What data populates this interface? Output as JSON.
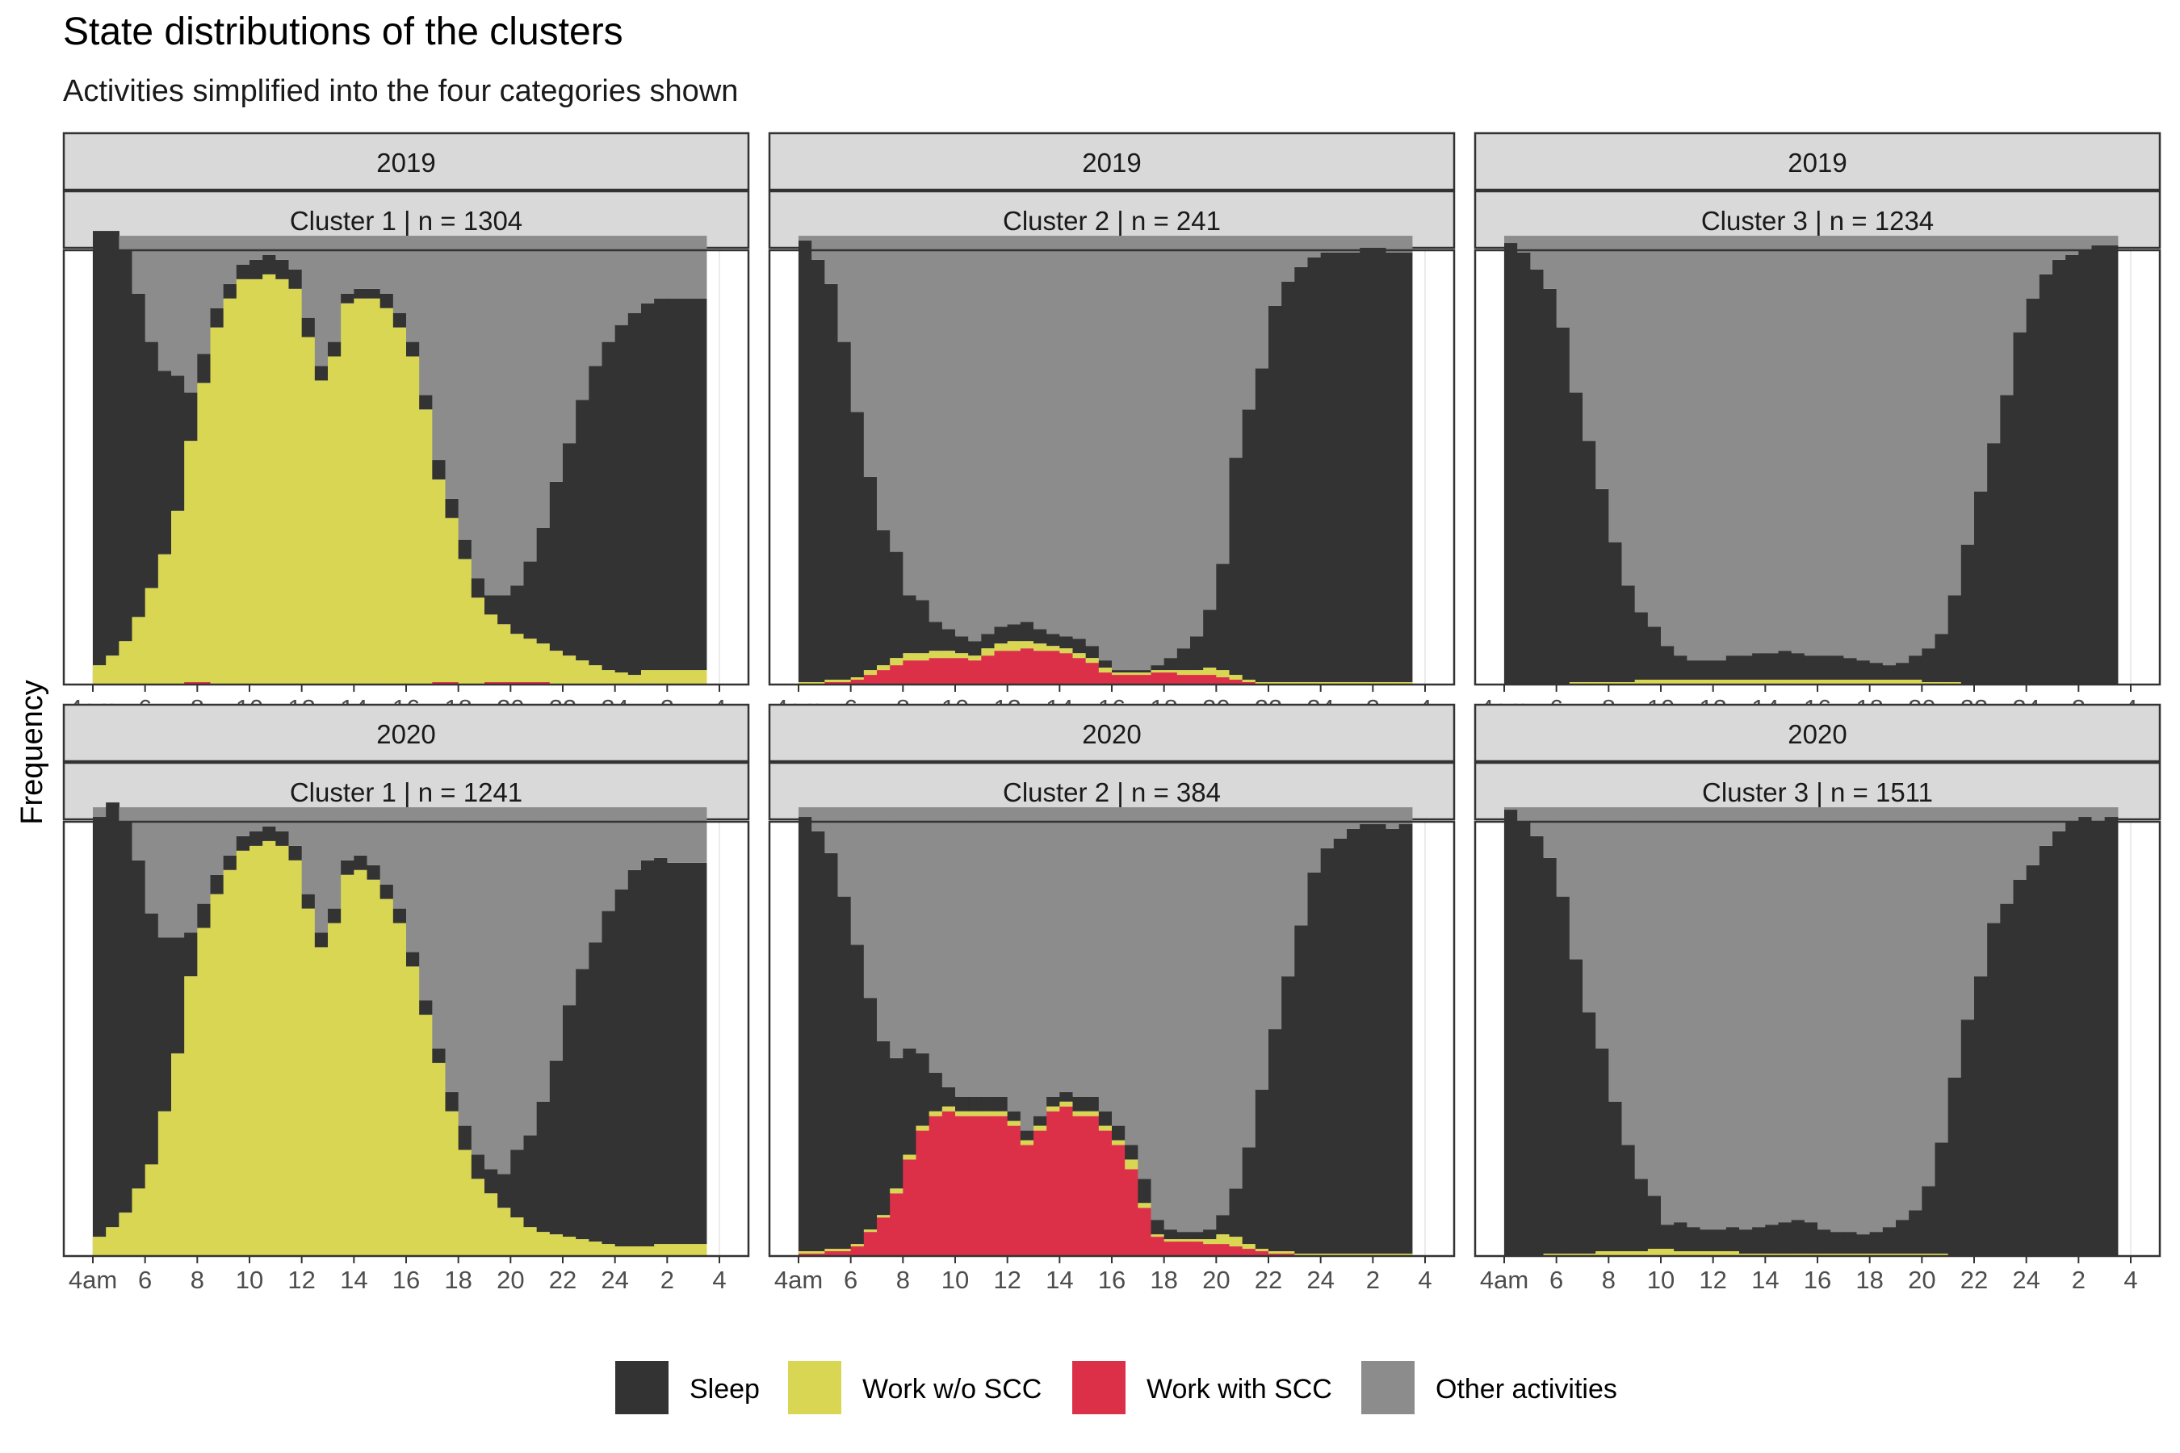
{
  "title": "State distributions of the clusters",
  "subtitle": "Activities simplified into the four categories shown",
  "colors": {
    "sleep": "#333333",
    "work_wo_scc": "#d9d653",
    "work_with_scc": "#dc3049",
    "other": "#8c8c8c",
    "strip_bg": "#d9d9d9",
    "frame": "#333333"
  },
  "chart_data": {
    "type": "stacked-bar",
    "ylabel": "Frequency",
    "xlabel": "",
    "x_ticks": [
      "4am",
      "6",
      "8",
      "10",
      "12",
      "14",
      "16",
      "18",
      "20",
      "22",
      "24",
      "2",
      "4"
    ],
    "x_tick_positions_hours": [
      4,
      6,
      8,
      10,
      12,
      14,
      16,
      18,
      20,
      22,
      24,
      26,
      28
    ],
    "xlim_hours": [
      4,
      28
    ],
    "bin_minutes": 30,
    "stack_order": [
      "Work with SCC",
      "Work w/o SCC",
      "Sleep",
      "Other activities"
    ],
    "legend": [
      {
        "label": "Sleep",
        "color_key": "sleep"
      },
      {
        "label": "Work w/o SCC",
        "color_key": "work_wo_scc"
      },
      {
        "label": "Work with SCC",
        "color_key": "work_with_scc"
      },
      {
        "label": "Other activities",
        "color_key": "other"
      }
    ],
    "legend_position": "bottom",
    "panels": [
      {
        "year": "2019",
        "cluster_label": "Cluster 1  |  n = 1304",
        "row": 0,
        "col": 0,
        "scc": [
          0.0,
          0.0,
          0.0,
          0.0,
          0.0,
          0.0,
          0.0,
          0.005,
          0.005,
          0.0,
          0.0,
          0.0,
          0.0,
          0.0,
          0.0,
          0.0,
          0.0,
          0.0,
          0.0,
          0.0,
          0.0,
          0.0,
          0.0,
          0.0,
          0.0,
          0.0,
          0.005,
          0.005,
          0.0,
          0.0,
          0.005,
          0.005,
          0.005,
          0.005,
          0.005,
          0.0,
          0.0,
          0.0,
          0.0,
          0.0,
          0.0,
          0.0,
          0.0,
          0.0,
          0.0,
          0.0,
          0.0,
          0.0
        ],
        "work": [
          0.04,
          0.06,
          0.09,
          0.14,
          0.2,
          0.27,
          0.36,
          0.5,
          0.62,
          0.74,
          0.8,
          0.84,
          0.84,
          0.85,
          0.84,
          0.82,
          0.72,
          0.63,
          0.68,
          0.79,
          0.8,
          0.8,
          0.78,
          0.74,
          0.68,
          0.57,
          0.42,
          0.34,
          0.26,
          0.18,
          0.14,
          0.12,
          0.1,
          0.09,
          0.08,
          0.07,
          0.06,
          0.05,
          0.04,
          0.03,
          0.025,
          0.02,
          0.03,
          0.03,
          0.03,
          0.03,
          0.03,
          0.0
        ],
        "sleep": [
          0.9,
          0.88,
          0.81,
          0.67,
          0.51,
          0.38,
          0.28,
          0.1,
          0.06,
          0.04,
          0.03,
          0.03,
          0.04,
          0.04,
          0.04,
          0.04,
          0.04,
          0.03,
          0.03,
          0.02,
          0.02,
          0.02,
          0.03,
          0.03,
          0.03,
          0.03,
          0.04,
          0.04,
          0.04,
          0.04,
          0.04,
          0.06,
          0.1,
          0.16,
          0.24,
          0.35,
          0.44,
          0.54,
          0.62,
          0.68,
          0.72,
          0.75,
          0.76,
          0.77,
          0.77,
          0.77,
          0.77,
          0.0
        ]
      },
      {
        "year": "2019",
        "cluster_label": "Cluster 2  |  n = 241",
        "row": 0,
        "col": 1,
        "scc": [
          0.0,
          0.0,
          0.005,
          0.005,
          0.01,
          0.02,
          0.03,
          0.04,
          0.05,
          0.05,
          0.055,
          0.055,
          0.055,
          0.05,
          0.06,
          0.07,
          0.07,
          0.075,
          0.07,
          0.07,
          0.065,
          0.055,
          0.045,
          0.025,
          0.02,
          0.02,
          0.02,
          0.025,
          0.025,
          0.02,
          0.02,
          0.02,
          0.015,
          0.01,
          0.005,
          0.0,
          0.0,
          0.0,
          0.0,
          0.0,
          0.0,
          0.0,
          0.0,
          0.0,
          0.0,
          0.0,
          0.0,
          0.0
        ],
        "work": [
          0.005,
          0.005,
          0.005,
          0.005,
          0.005,
          0.01,
          0.01,
          0.015,
          0.015,
          0.015,
          0.015,
          0.015,
          0.01,
          0.01,
          0.015,
          0.015,
          0.02,
          0.015,
          0.015,
          0.01,
          0.01,
          0.01,
          0.01,
          0.01,
          0.005,
          0.005,
          0.005,
          0.005,
          0.005,
          0.01,
          0.01,
          0.015,
          0.015,
          0.01,
          0.005,
          0.005,
          0.005,
          0.005,
          0.005,
          0.005,
          0.005,
          0.005,
          0.005,
          0.005,
          0.005,
          0.005,
          0.005,
          0.0
        ],
        "sleep": [
          0.915,
          0.875,
          0.82,
          0.7,
          0.55,
          0.4,
          0.28,
          0.22,
          0.12,
          0.11,
          0.06,
          0.045,
          0.035,
          0.03,
          0.03,
          0.035,
          0.035,
          0.04,
          0.03,
          0.025,
          0.025,
          0.03,
          0.025,
          0.015,
          0.005,
          0.005,
          0.005,
          0.01,
          0.025,
          0.045,
          0.07,
          0.12,
          0.22,
          0.45,
          0.56,
          0.65,
          0.78,
          0.83,
          0.86,
          0.88,
          0.89,
          0.89,
          0.89,
          0.9,
          0.9,
          0.89,
          0.89,
          0.0
        ]
      },
      {
        "year": "2019",
        "cluster_label": "Cluster 3  |  n = 1234",
        "row": 0,
        "col": 2,
        "scc": [
          0.0,
          0.0,
          0.0,
          0.0,
          0.0,
          0.0,
          0.0,
          0.0,
          0.0,
          0.0,
          0.0,
          0.0,
          0.0,
          0.0,
          0.0,
          0.0,
          0.0,
          0.0,
          0.0,
          0.0,
          0.0,
          0.0,
          0.0,
          0.0,
          0.0,
          0.0,
          0.0,
          0.0,
          0.0,
          0.0,
          0.0,
          0.0,
          0.0,
          0.0,
          0.0,
          0.0,
          0.0,
          0.0,
          0.0,
          0.0,
          0.0,
          0.0,
          0.0,
          0.0,
          0.0,
          0.0,
          0.0,
          0.0
        ],
        "work": [
          0.0,
          0.0,
          0.0,
          0.0,
          0.0,
          0.005,
          0.005,
          0.005,
          0.005,
          0.005,
          0.01,
          0.01,
          0.01,
          0.01,
          0.01,
          0.01,
          0.01,
          0.01,
          0.01,
          0.01,
          0.01,
          0.01,
          0.01,
          0.01,
          0.01,
          0.01,
          0.01,
          0.01,
          0.01,
          0.01,
          0.01,
          0.01,
          0.005,
          0.005,
          0.005,
          0.0,
          0.0,
          0.0,
          0.0,
          0.0,
          0.0,
          0.0,
          0.0,
          0.0,
          0.0,
          0.0,
          0.0,
          0.0
        ],
        "sleep": [
          0.915,
          0.895,
          0.86,
          0.82,
          0.74,
          0.6,
          0.5,
          0.4,
          0.29,
          0.2,
          0.14,
          0.11,
          0.07,
          0.05,
          0.04,
          0.04,
          0.04,
          0.05,
          0.05,
          0.055,
          0.055,
          0.06,
          0.055,
          0.05,
          0.05,
          0.05,
          0.045,
          0.04,
          0.035,
          0.03,
          0.035,
          0.05,
          0.07,
          0.1,
          0.18,
          0.29,
          0.4,
          0.5,
          0.6,
          0.73,
          0.8,
          0.85,
          0.88,
          0.89,
          0.9,
          0.91,
          0.91,
          0.0
        ]
      },
      {
        "year": "2020",
        "cluster_label": "Cluster 1  |  n = 1241",
        "row": 1,
        "col": 0,
        "scc": [
          0.0,
          0.0,
          0.0,
          0.0,
          0.0,
          0.0,
          0.0,
          0.0,
          0.0,
          0.0,
          0.0,
          0.0,
          0.0,
          0.0,
          0.0,
          0.0,
          0.0,
          0.0,
          0.0,
          0.0,
          0.0,
          0.0,
          0.0,
          0.0,
          0.0,
          0.0,
          0.0,
          0.0,
          0.0,
          0.0,
          0.0,
          0.0,
          0.0,
          0.0,
          0.0,
          0.0,
          0.0,
          0.0,
          0.0,
          0.0,
          0.0,
          0.0,
          0.0,
          0.0,
          0.0,
          0.0,
          0.0,
          0.0
        ],
        "work": [
          0.04,
          0.06,
          0.09,
          0.14,
          0.19,
          0.3,
          0.42,
          0.58,
          0.68,
          0.75,
          0.8,
          0.84,
          0.85,
          0.86,
          0.85,
          0.82,
          0.72,
          0.64,
          0.69,
          0.79,
          0.8,
          0.78,
          0.74,
          0.69,
          0.6,
          0.5,
          0.4,
          0.3,
          0.22,
          0.16,
          0.13,
          0.1,
          0.08,
          0.06,
          0.05,
          0.045,
          0.04,
          0.035,
          0.03,
          0.025,
          0.02,
          0.02,
          0.02,
          0.025,
          0.025,
          0.025,
          0.025,
          0.0
        ],
        "sleep": [
          0.87,
          0.88,
          0.81,
          0.68,
          0.52,
          0.36,
          0.24,
          0.09,
          0.05,
          0.04,
          0.03,
          0.03,
          0.03,
          0.03,
          0.03,
          0.03,
          0.03,
          0.03,
          0.03,
          0.03,
          0.03,
          0.03,
          0.03,
          0.03,
          0.03,
          0.03,
          0.03,
          0.04,
          0.05,
          0.05,
          0.05,
          0.07,
          0.14,
          0.19,
          0.27,
          0.36,
          0.48,
          0.56,
          0.62,
          0.69,
          0.74,
          0.78,
          0.8,
          0.8,
          0.79,
          0.79,
          0.79,
          0.0
        ]
      },
      {
        "year": "2020",
        "cluster_label": "Cluster 2  |  n = 384",
        "row": 1,
        "col": 1,
        "scc": [
          0.005,
          0.005,
          0.01,
          0.01,
          0.02,
          0.05,
          0.08,
          0.13,
          0.2,
          0.26,
          0.29,
          0.3,
          0.29,
          0.29,
          0.29,
          0.29,
          0.27,
          0.23,
          0.26,
          0.3,
          0.31,
          0.29,
          0.29,
          0.26,
          0.23,
          0.18,
          0.1,
          0.04,
          0.03,
          0.03,
          0.03,
          0.025,
          0.025,
          0.02,
          0.015,
          0.01,
          0.005,
          0.005,
          0.0,
          0.0,
          0.0,
          0.0,
          0.0,
          0.0,
          0.0,
          0.0,
          0.0,
          0.0
        ],
        "work": [
          0.005,
          0.005,
          0.005,
          0.005,
          0.005,
          0.005,
          0.005,
          0.01,
          0.01,
          0.01,
          0.01,
          0.01,
          0.01,
          0.01,
          0.01,
          0.01,
          0.01,
          0.01,
          0.01,
          0.01,
          0.01,
          0.01,
          0.01,
          0.01,
          0.01,
          0.02,
          0.01,
          0.005,
          0.005,
          0.005,
          0.005,
          0.01,
          0.02,
          0.02,
          0.01,
          0.005,
          0.005,
          0.005,
          0.005,
          0.005,
          0.005,
          0.005,
          0.005,
          0.005,
          0.005,
          0.005,
          0.005,
          0.0
        ],
        "sleep": [
          0.9,
          0.87,
          0.82,
          0.73,
          0.62,
          0.48,
          0.36,
          0.27,
          0.22,
          0.15,
          0.08,
          0.04,
          0.03,
          0.03,
          0.03,
          0.03,
          0.02,
          0.02,
          0.02,
          0.02,
          0.02,
          0.03,
          0.03,
          0.03,
          0.03,
          0.03,
          0.05,
          0.03,
          0.02,
          0.015,
          0.015,
          0.02,
          0.04,
          0.1,
          0.2,
          0.33,
          0.46,
          0.57,
          0.68,
          0.79,
          0.84,
          0.86,
          0.88,
          0.89,
          0.89,
          0.88,
          0.89,
          0.0
        ]
      },
      {
        "year": "2020",
        "cluster_label": "Cluster 3  |  n = 1511",
        "row": 1,
        "col": 2,
        "scc": [
          0.0,
          0.0,
          0.0,
          0.0,
          0.0,
          0.0,
          0.0,
          0.0,
          0.0,
          0.0,
          0.0,
          0.0,
          0.0,
          0.0,
          0.0,
          0.0,
          0.0,
          0.0,
          0.0,
          0.0,
          0.0,
          0.0,
          0.0,
          0.0,
          0.0,
          0.0,
          0.0,
          0.0,
          0.0,
          0.0,
          0.0,
          0.0,
          0.0,
          0.0,
          0.0,
          0.0,
          0.0,
          0.0,
          0.0,
          0.0,
          0.0,
          0.0,
          0.0,
          0.0,
          0.0,
          0.0,
          0.0,
          0.0
        ],
        "work": [
          0.0,
          0.0,
          0.0,
          0.005,
          0.005,
          0.005,
          0.005,
          0.01,
          0.01,
          0.01,
          0.01,
          0.015,
          0.015,
          0.01,
          0.01,
          0.01,
          0.01,
          0.01,
          0.005,
          0.005,
          0.005,
          0.005,
          0.005,
          0.005,
          0.005,
          0.005,
          0.005,
          0.005,
          0.005,
          0.005,
          0.005,
          0.005,
          0.005,
          0.005,
          0.0,
          0.0,
          0.0,
          0.0,
          0.0,
          0.0,
          0.0,
          0.0,
          0.0,
          0.0,
          0.0,
          0.0,
          0.0,
          0.0
        ],
        "sleep": [
          0.925,
          0.9,
          0.87,
          0.82,
          0.74,
          0.61,
          0.5,
          0.42,
          0.31,
          0.22,
          0.15,
          0.11,
          0.05,
          0.06,
          0.05,
          0.045,
          0.045,
          0.05,
          0.05,
          0.055,
          0.06,
          0.065,
          0.07,
          0.065,
          0.05,
          0.045,
          0.045,
          0.04,
          0.045,
          0.055,
          0.07,
          0.09,
          0.14,
          0.23,
          0.37,
          0.49,
          0.58,
          0.69,
          0.73,
          0.78,
          0.81,
          0.85,
          0.88,
          0.9,
          0.91,
          0.9,
          0.91,
          0.0
        ]
      }
    ]
  }
}
